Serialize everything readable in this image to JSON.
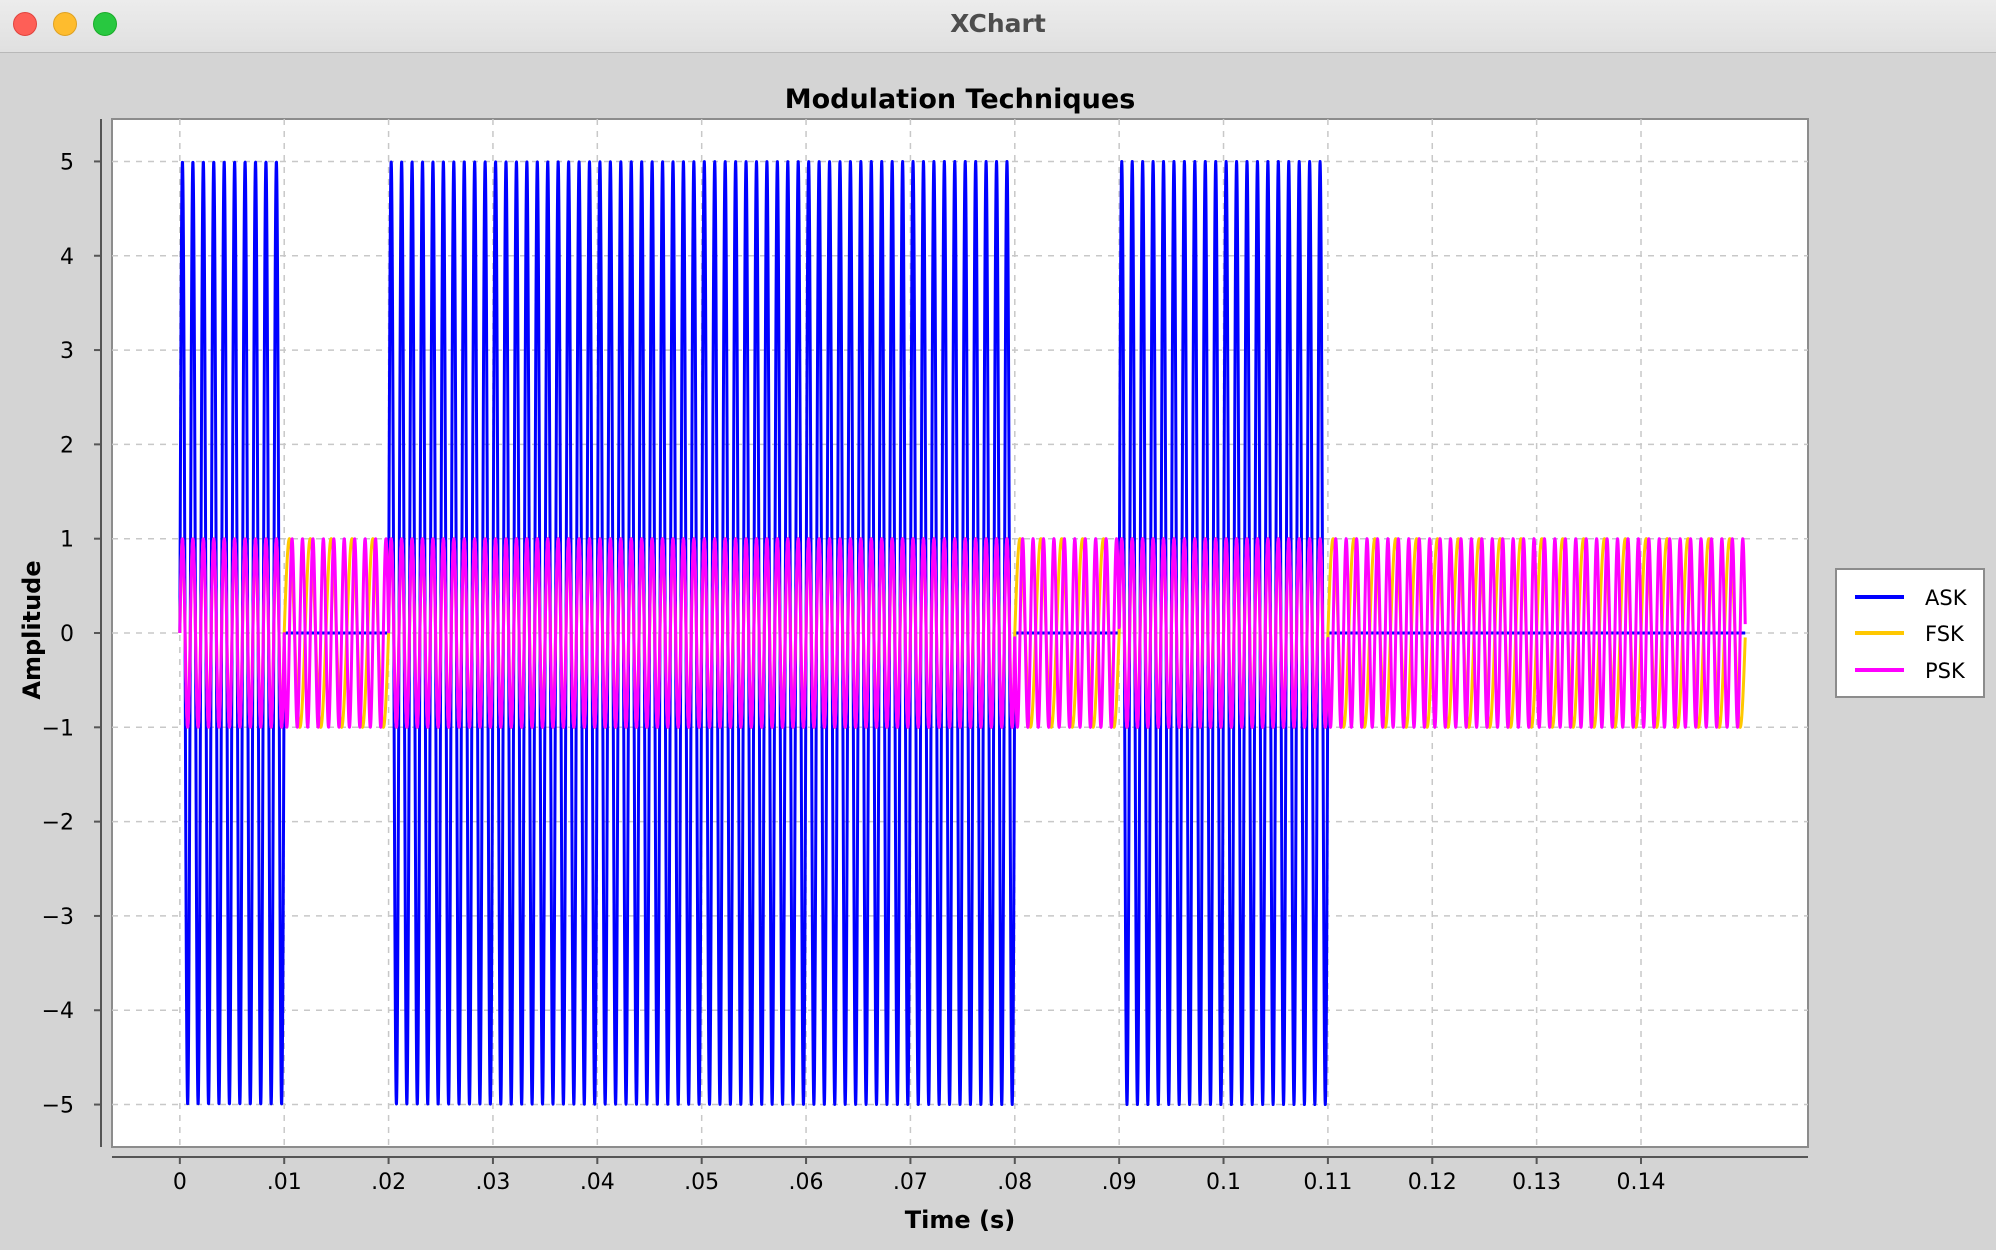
{
  "window": {
    "title": "XChart"
  },
  "chart_data": {
    "type": "line",
    "title": "Modulation Techniques",
    "xlabel": "Time (s)",
    "ylabel": "Amplitude",
    "xlim": [
      -0.0065,
      0.156
    ],
    "ylim": [
      -5.45,
      5.45
    ],
    "xticks": [
      0,
      0.01,
      0.02,
      0.03,
      0.04,
      0.05,
      0.06,
      0.07,
      0.08,
      0.09,
      0.1,
      0.11,
      0.12,
      0.13,
      0.14
    ],
    "xtick_labels": [
      "0",
      ".01",
      ".02",
      ".03",
      ".04",
      ".05",
      ".06",
      ".07",
      ".08",
      ".09",
      "0.1",
      "0.11",
      "0.12",
      "0.13",
      "0.14"
    ],
    "yticks": [
      5,
      4,
      3,
      2,
      1,
      0,
      -1,
      -2,
      -3,
      -4,
      -5
    ],
    "ytick_labels": [
      "5",
      "4",
      "3",
      "2",
      "1",
      "0",
      "−1",
      "−2",
      "−3",
      "−4",
      "−5"
    ],
    "grid": true,
    "legend_position": "right",
    "series": [
      {
        "name": "ASK",
        "color": "#0000ff",
        "bits": [
          1,
          0,
          1,
          1,
          1,
          1,
          1,
          1,
          0,
          1,
          1,
          0,
          0,
          0,
          0
        ],
        "bit_duration": 0.01,
        "carrier_frequency_hz": 1000,
        "high_amplitude": 5,
        "low_amplitude": 0
      },
      {
        "name": "FSK",
        "color": "#ffc800",
        "bits": [
          1,
          0,
          1,
          1,
          1,
          1,
          1,
          1,
          0,
          1,
          1,
          0,
          0,
          0,
          0
        ],
        "bit_duration": 0.01,
        "amplitude": 1,
        "frequency_bit1_hz": 1000,
        "frequency_bit0_hz": 500
      },
      {
        "name": "PSK",
        "color": "#ff00ff",
        "bits": [
          1,
          0,
          1,
          1,
          1,
          1,
          1,
          1,
          0,
          1,
          1,
          0,
          0,
          0,
          0
        ],
        "bit_duration": 0.01,
        "amplitude": 1,
        "carrier_frequency_hz": 1000,
        "phase_bit0_deg": 180
      }
    ]
  }
}
